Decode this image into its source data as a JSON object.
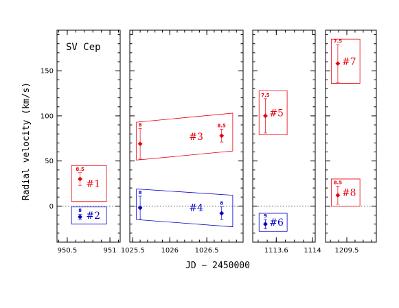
{
  "chart_data": {
    "type": "scatter",
    "star_label": "SV Cep",
    "xlabel": "JD − 2450000",
    "ylabel": "Radial velocity (km/s)",
    "ylim": [
      -40,
      195
    ],
    "y_ticks": [
      0,
      50,
      100,
      150
    ],
    "colors": {
      "red": "#e8000b",
      "blue": "#0000cc"
    },
    "panels": [
      {
        "xlim": [
          950.38,
          951.12
        ],
        "x_ticks": [
          {
            "v": 950.5,
            "label": "950.5"
          },
          {
            "v": 951,
            "label": "951"
          }
        ],
        "points": [
          {
            "x": 950.65,
            "y": 30,
            "err": 7,
            "label": "8.5",
            "color": "red"
          },
          {
            "x": 950.65,
            "y": -12,
            "err": 3,
            "label": "8",
            "color": "blue"
          }
        ],
        "boxes": [
          {
            "x0": 950.55,
            "x1": 950.96,
            "yl": [
              5,
              5
            ],
            "yh": [
              45,
              45
            ],
            "label": "#1",
            "color": "red"
          },
          {
            "x0": 950.55,
            "x1": 950.96,
            "yl": [
              -20,
              -20
            ],
            "yh": [
              -1,
              -1
            ],
            "label": "#2",
            "color": "blue"
          }
        ]
      },
      {
        "xlim": [
          1025.46,
          1026.99
        ],
        "x_ticks": [
          {
            "v": 1025.5,
            "label": "1025.5"
          },
          {
            "v": 1026,
            "label": "1026"
          },
          {
            "v": 1026.5,
            "label": "1026.5"
          }
        ],
        "points": [
          {
            "x": 1025.6,
            "y": 69,
            "err": 17,
            "label": "8",
            "color": "red"
          },
          {
            "x": 1026.7,
            "y": 78,
            "err": 7,
            "label": "8.5",
            "color": "red"
          },
          {
            "x": 1025.6,
            "y": -2,
            "err": 13,
            "label": "8",
            "color": "blue"
          },
          {
            "x": 1026.7,
            "y": -8,
            "err": 7,
            "label": "8",
            "color": "blue"
          }
        ],
        "boxes": [
          {
            "x0": 1025.55,
            "x1": 1026.85,
            "yl": [
              51,
              61
            ],
            "yh": [
              93,
              103
            ],
            "label": "#3",
            "color": "red"
          },
          {
            "x0": 1025.55,
            "x1": 1026.85,
            "yl": [
              -15,
              -23
            ],
            "yh": [
              19,
              12
            ],
            "label": "#4",
            "color": "blue"
          }
        ]
      },
      {
        "xlim": [
          1113.34,
          1114.03
        ],
        "x_ticks": [
          {
            "v": 1113.6,
            "label": "1113.6"
          },
          {
            "v": 1114,
            "label": "1114"
          }
        ],
        "points": [
          {
            "x": 1113.48,
            "y": 100,
            "err": 19,
            "label": "7.5",
            "color": "red"
          },
          {
            "x": 1113.48,
            "y": -20,
            "err": 5,
            "label": "9",
            "color": "blue"
          }
        ],
        "boxes": [
          {
            "x0": 1113.41,
            "x1": 1113.72,
            "yl": [
              79,
              79
            ],
            "yh": [
              128,
              128
            ],
            "label": "#5",
            "color": "red"
          },
          {
            "x0": 1113.41,
            "x1": 1113.72,
            "yl": [
              -28,
              -28
            ],
            "yh": [
              -8,
              -8
            ],
            "label": "#6",
            "color": "blue"
          }
        ]
      },
      {
        "xlim": [
          1209.24,
          1209.86
        ],
        "x_ticks": [
          {
            "v": 1209.5,
            "label": "1209.5"
          }
        ],
        "points": [
          {
            "x": 1209.39,
            "y": 158,
            "err": 21,
            "label": "7.5",
            "color": "red"
          },
          {
            "x": 1209.39,
            "y": 12,
            "err": 10,
            "label": "8.5",
            "color": "red"
          }
        ],
        "boxes": [
          {
            "x0": 1209.31,
            "x1": 1209.66,
            "yl": [
              136,
              136
            ],
            "yh": [
              185,
              185
            ],
            "label": "#7",
            "color": "red"
          },
          {
            "x0": 1209.31,
            "x1": 1209.66,
            "yl": [
              0,
              0
            ],
            "yh": [
              30,
              30
            ],
            "label": "#8",
            "color": "red"
          }
        ]
      }
    ]
  }
}
